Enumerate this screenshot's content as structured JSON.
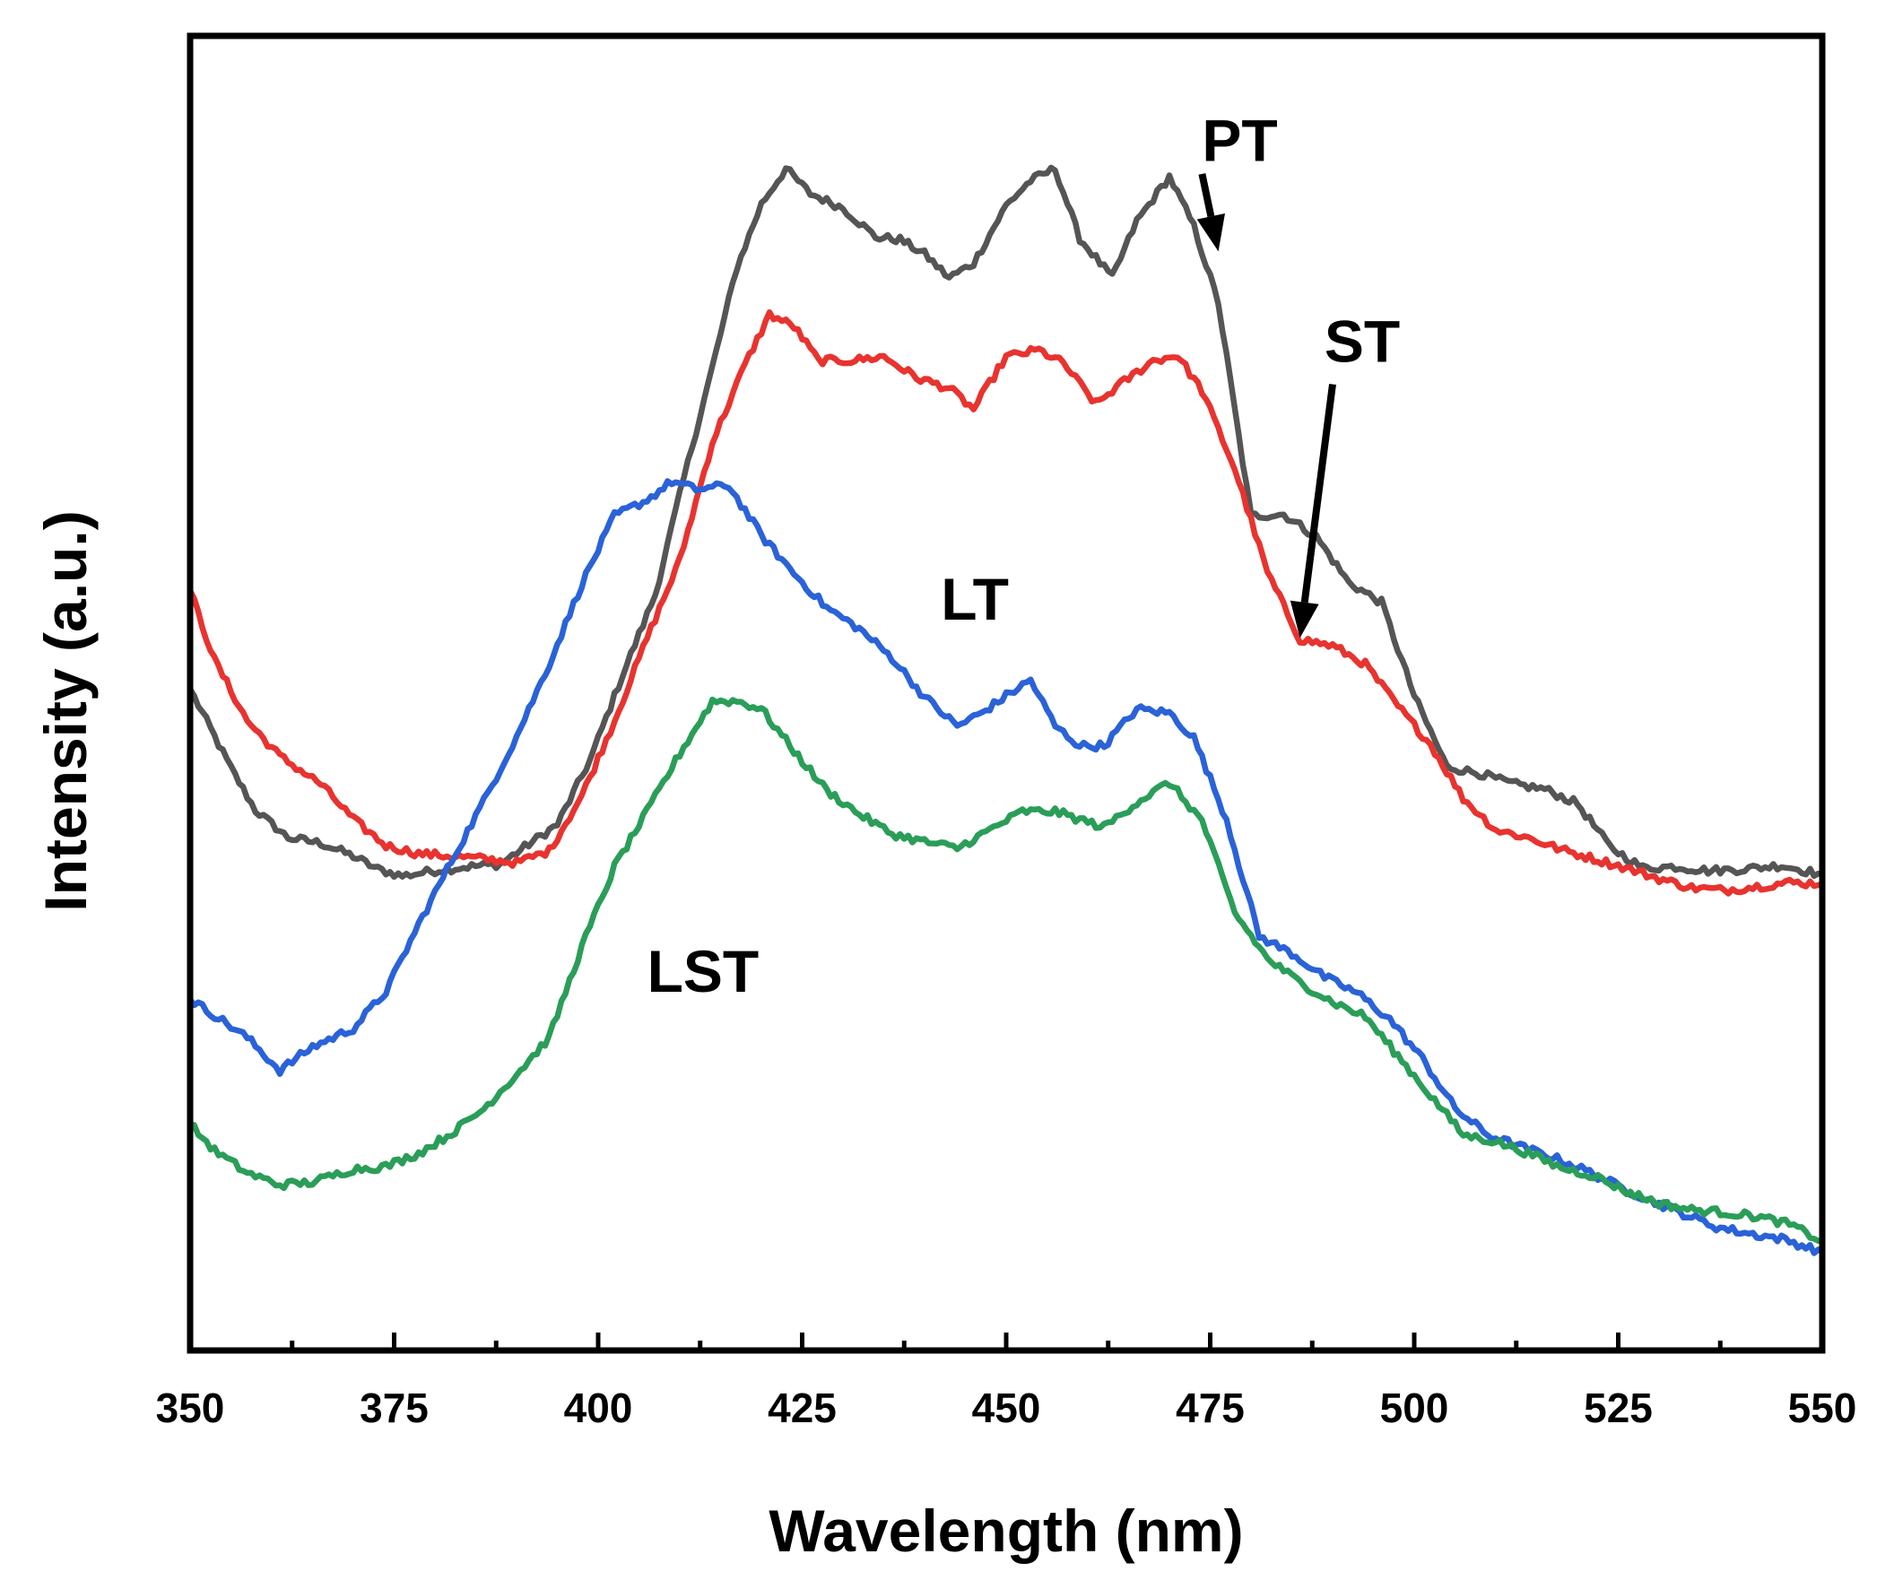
{
  "chart_data": {
    "type": "line",
    "title": "",
    "xlabel": "Wavelength (nm)",
    "ylabel": "Intensity (a.u.)",
    "xlim": [
      350,
      550
    ],
    "ylim": [
      0,
      100
    ],
    "xticks": [
      {
        "value": 350,
        "label": "350"
      },
      {
        "value": 375,
        "label": "375"
      },
      {
        "value": 400,
        "label": "400"
      },
      {
        "value": 425,
        "label": "425"
      },
      {
        "value": 450,
        "label": "450"
      },
      {
        "value": 475,
        "label": "475"
      },
      {
        "value": 500,
        "label": "500"
      },
      {
        "value": 525,
        "label": "525"
      },
      {
        "value": 550,
        "label": "550"
      }
    ],
    "yticks_visible": false,
    "grid": false,
    "legend": "none",
    "series": [
      {
        "name": "PT",
        "color": "#555555",
        "points": [
          [
            350,
            50.3
          ],
          [
            355,
            44.3
          ],
          [
            358,
            41.1
          ],
          [
            362,
            39.0
          ],
          [
            366,
            38.6
          ],
          [
            370,
            37.6
          ],
          [
            373,
            36.6
          ],
          [
            376,
            36.1
          ],
          [
            380,
            36.5
          ],
          [
            384,
            36.8
          ],
          [
            388,
            37.0
          ],
          [
            391,
            38.3
          ],
          [
            395,
            40.0
          ],
          [
            399,
            44.9
          ],
          [
            403,
            51.4
          ],
          [
            407,
            57.5
          ],
          [
            410,
            65.1
          ],
          [
            414,
            74.8
          ],
          [
            417,
            82.4
          ],
          [
            420,
            87.2
          ],
          [
            423,
            89.9
          ],
          [
            426,
            88.0
          ],
          [
            430,
            86.9
          ],
          [
            434,
            84.7
          ],
          [
            437,
            84.5
          ],
          [
            440,
            83.4
          ],
          [
            443,
            81.6
          ],
          [
            446,
            82.7
          ],
          [
            450,
            87.1
          ],
          [
            453,
            89.0
          ],
          [
            456,
            89.9
          ],
          [
            459,
            84.6
          ],
          [
            463,
            81.6
          ],
          [
            466,
            85.9
          ],
          [
            470,
            89.3
          ],
          [
            473,
            85.5
          ],
          [
            476,
            79.7
          ],
          [
            480,
            63.5
          ],
          [
            484,
            63.6
          ],
          [
            488,
            61.9
          ],
          [
            492,
            58.4
          ],
          [
            496,
            56.9
          ],
          [
            500,
            49.8
          ],
          [
            504,
            44.4
          ],
          [
            508,
            43.9
          ],
          [
            512,
            43.1
          ],
          [
            516,
            42.7
          ],
          [
            520,
            41.6
          ],
          [
            524,
            38.3
          ],
          [
            528,
            36.7
          ],
          [
            532,
            36.8
          ],
          [
            536,
            36.5
          ],
          [
            540,
            36.6
          ],
          [
            545,
            36.9
          ],
          [
            550,
            36.2
          ]
        ]
      },
      {
        "name": "ST",
        "color": "#e8332f",
        "points": [
          [
            350,
            57.8
          ],
          [
            353,
            52.5
          ],
          [
            357,
            47.9
          ],
          [
            361,
            45.2
          ],
          [
            366,
            43.1
          ],
          [
            370,
            40.4
          ],
          [
            374,
            38.4
          ],
          [
            378,
            37.8
          ],
          [
            382,
            37.6
          ],
          [
            386,
            37.4
          ],
          [
            390,
            37.1
          ],
          [
            394,
            38.0
          ],
          [
            398,
            42.2
          ],
          [
            402,
            47.9
          ],
          [
            406,
            54.2
          ],
          [
            410,
            60.1
          ],
          [
            414,
            69.1
          ],
          [
            418,
            75.0
          ],
          [
            421,
            78.8
          ],
          [
            424,
            77.9
          ],
          [
            427,
            75.3
          ],
          [
            431,
            75.3
          ],
          [
            435,
            75.6
          ],
          [
            439,
            74.0
          ],
          [
            443,
            73.2
          ],
          [
            446,
            71.6
          ],
          [
            450,
            75.6
          ],
          [
            454,
            76.1
          ],
          [
            457,
            75.1
          ],
          [
            461,
            72.0
          ],
          [
            464,
            73.5
          ],
          [
            468,
            75.3
          ],
          [
            471,
            75.7
          ],
          [
            474,
            73.0
          ],
          [
            478,
            67.1
          ],
          [
            482,
            59.2
          ],
          [
            486,
            54.1
          ],
          [
            490,
            53.6
          ],
          [
            494,
            52.2
          ],
          [
            498,
            49.0
          ],
          [
            502,
            46.1
          ],
          [
            506,
            42.0
          ],
          [
            510,
            39.6
          ],
          [
            514,
            39.0
          ],
          [
            518,
            38.1
          ],
          [
            522,
            37.4
          ],
          [
            526,
            36.7
          ],
          [
            530,
            35.9
          ],
          [
            534,
            35.2
          ],
          [
            538,
            35.0
          ],
          [
            542,
            35.3
          ],
          [
            546,
            35.6
          ],
          [
            550,
            35.5
          ]
        ]
      },
      {
        "name": "LT",
        "color": "#2a62d8",
        "points": [
          [
            350,
            26.7
          ],
          [
            353,
            25.5
          ],
          [
            357,
            23.8
          ],
          [
            361,
            21.3
          ],
          [
            365,
            23.1
          ],
          [
            370,
            24.5
          ],
          [
            374,
            27.3
          ],
          [
            378,
            32.4
          ],
          [
            382,
            37.2
          ],
          [
            386,
            41.8
          ],
          [
            390,
            46.7
          ],
          [
            394,
            52.2
          ],
          [
            398,
            58.3
          ],
          [
            402,
            63.5
          ],
          [
            406,
            64.7
          ],
          [
            409,
            66.1
          ],
          [
            412,
            65.5
          ],
          [
            416,
            65.8
          ],
          [
            420,
            62.0
          ],
          [
            424,
            59.1
          ],
          [
            428,
            56.5
          ],
          [
            432,
            54.9
          ],
          [
            436,
            52.7
          ],
          [
            440,
            49.7
          ],
          [
            444,
            47.5
          ],
          [
            447,
            48.5
          ],
          [
            450,
            49.8
          ],
          [
            453,
            51.0
          ],
          [
            456,
            47.5
          ],
          [
            459,
            46.0
          ],
          [
            462,
            46.0
          ],
          [
            466,
            48.8
          ],
          [
            470,
            48.5
          ],
          [
            473,
            46.6
          ],
          [
            477,
            40.4
          ],
          [
            481,
            31.5
          ],
          [
            485,
            30.2
          ],
          [
            489,
            28.4
          ],
          [
            493,
            27.2
          ],
          [
            497,
            25.2
          ],
          [
            501,
            22.2
          ],
          [
            505,
            18.4
          ],
          [
            509,
            16.4
          ],
          [
            513,
            15.5
          ],
          [
            517,
            14.7
          ],
          [
            521,
            13.7
          ],
          [
            525,
            12.5
          ],
          [
            529,
            11.4
          ],
          [
            533,
            10.4
          ],
          [
            537,
            9.4
          ],
          [
            541,
            8.9
          ],
          [
            545,
            8.5
          ],
          [
            550,
            7.5
          ]
        ]
      },
      {
        "name": "LST",
        "color": "#2a9e58",
        "points": [
          [
            350,
            17.2
          ],
          [
            353,
            15.2
          ],
          [
            357,
            13.5
          ],
          [
            361,
            12.6
          ],
          [
            365,
            12.8
          ],
          [
            370,
            13.8
          ],
          [
            374,
            14.0
          ],
          [
            378,
            15.0
          ],
          [
            382,
            16.5
          ],
          [
            386,
            18.4
          ],
          [
            390,
            21.0
          ],
          [
            394,
            23.8
          ],
          [
            398,
            30.7
          ],
          [
            402,
            36.8
          ],
          [
            406,
            41.0
          ],
          [
            410,
            45.4
          ],
          [
            414,
            49.4
          ],
          [
            417,
            49.4
          ],
          [
            420,
            48.8
          ],
          [
            424,
            45.6
          ],
          [
            428,
            42.6
          ],
          [
            432,
            40.8
          ],
          [
            436,
            39.3
          ],
          [
            440,
            38.7
          ],
          [
            444,
            38.2
          ],
          [
            448,
            39.6
          ],
          [
            452,
            41.0
          ],
          [
            456,
            41.0
          ],
          [
            459,
            40.4
          ],
          [
            462,
            39.8
          ],
          [
            466,
            41.7
          ],
          [
            470,
            43.2
          ],
          [
            474,
            40.3
          ],
          [
            478,
            33.3
          ],
          [
            482,
            29.8
          ],
          [
            486,
            28.0
          ],
          [
            490,
            26.5
          ],
          [
            494,
            25.4
          ],
          [
            498,
            22.4
          ],
          [
            502,
            19.4
          ],
          [
            506,
            16.4
          ],
          [
            510,
            15.9
          ],
          [
            514,
            15.0
          ],
          [
            518,
            13.9
          ],
          [
            522,
            13.3
          ],
          [
            526,
            12.1
          ],
          [
            530,
            11.2
          ],
          [
            534,
            10.7
          ],
          [
            538,
            10.5
          ],
          [
            542,
            10.2
          ],
          [
            546,
            9.6
          ],
          [
            550,
            8.3
          ]
        ]
      }
    ],
    "annotations": [
      {
        "text": "PT",
        "series": "PT",
        "x": 474,
        "y": 90.5,
        "arrow": {
          "from": [
            474,
            89.5
          ],
          "to": [
            476,
            83.6
          ]
        }
      },
      {
        "text": "ST",
        "series": "ST",
        "x": 489,
        "y": 75.2,
        "arrow": {
          "from": [
            490,
            73.5
          ],
          "to": [
            486,
            54.2
          ]
        }
      },
      {
        "text": "LT",
        "series": "LT",
        "x": 442,
        "y": 55.6
      },
      {
        "text": "LST",
        "series": "LST",
        "x": 406,
        "y": 27.3
      }
    ]
  }
}
